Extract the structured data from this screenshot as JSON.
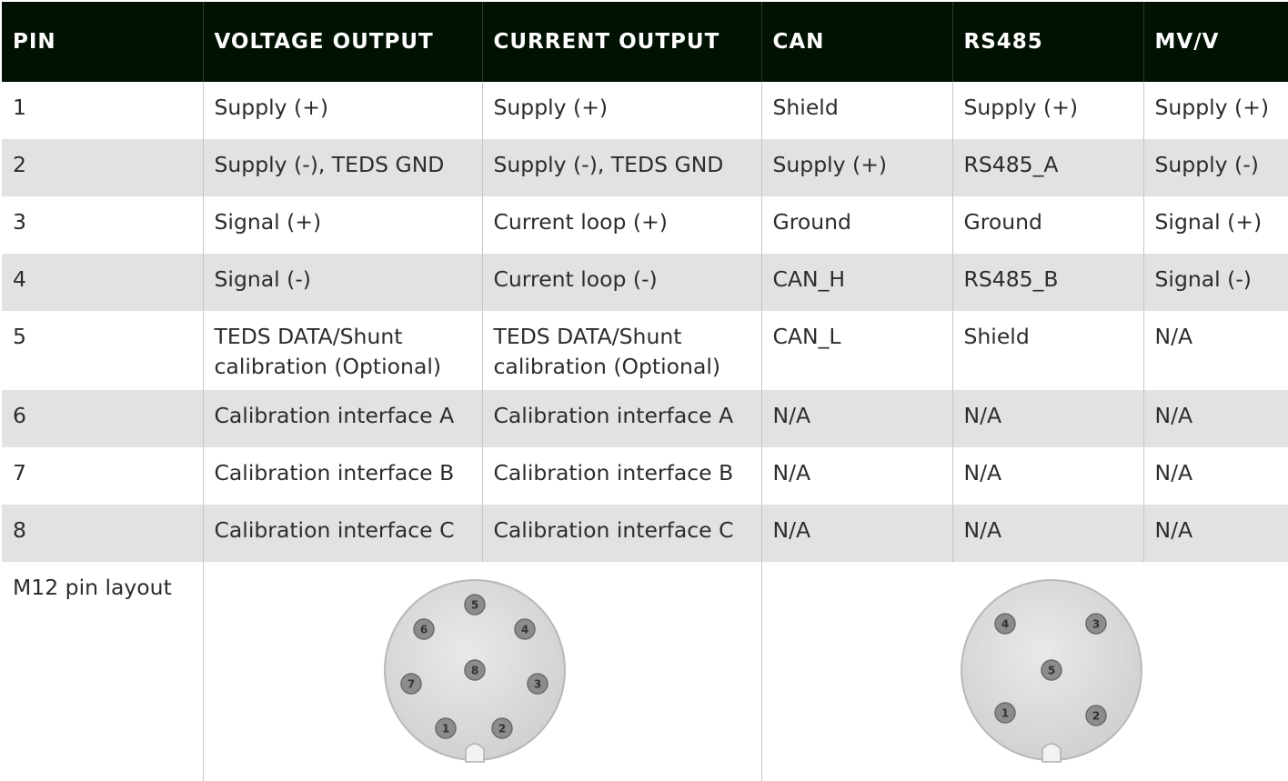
{
  "table": {
    "headers": [
      "PIN",
      "VOLTAGE OUTPUT",
      "CURRENT OUTPUT",
      "CAN",
      "RS485",
      "MV/V"
    ],
    "rows": [
      [
        "1",
        "Supply (+)",
        "Supply (+)",
        "Shield",
        "Supply (+)",
        "Supply (+)"
      ],
      [
        "2",
        "Supply (-), TEDS GND",
        "Supply (-), TEDS GND",
        "Supply (+)",
        "RS485_A",
        "Supply (-)"
      ],
      [
        "3",
        "Signal (+)",
        "Current loop (+)",
        "Ground",
        "Ground",
        "Signal (+)"
      ],
      [
        "4",
        "Signal (-)",
        "Current loop (-)",
        "CAN_H",
        "RS485_B",
        "Signal (-)"
      ],
      [
        "5",
        "TEDS DATA/Shunt calibration (Optional)",
        "TEDS DATA/Shunt calibration (Optional)",
        "CAN_L",
        "Shield",
        "N/A"
      ],
      [
        "6",
        "Calibration interface A",
        "Calibration interface A",
        "N/A",
        "N/A",
        "N/A"
      ],
      [
        "7",
        "Calibration interface B",
        "Calibration interface B",
        "N/A",
        "N/A",
        "N/A"
      ],
      [
        "8",
        "Calibration interface C",
        "Calibration interface C",
        "N/A",
        "N/A",
        "N/A"
      ]
    ],
    "layout_row_label": "M12 pin layout"
  },
  "connectors": {
    "eight_pin": {
      "pin_labels": [
        "5",
        "6",
        "4",
        "8",
        "7",
        "3",
        "1",
        "2"
      ]
    },
    "five_pin": {
      "pin_labels": [
        "4",
        "3",
        "5",
        "1",
        "2"
      ]
    }
  },
  "colors": {
    "header_background": "#011203",
    "header_text": "#ffffff",
    "shaded_row": "#e2e2e2",
    "connector_face": "#dcdcdc",
    "pin_fill": "#8c8c8c"
  }
}
